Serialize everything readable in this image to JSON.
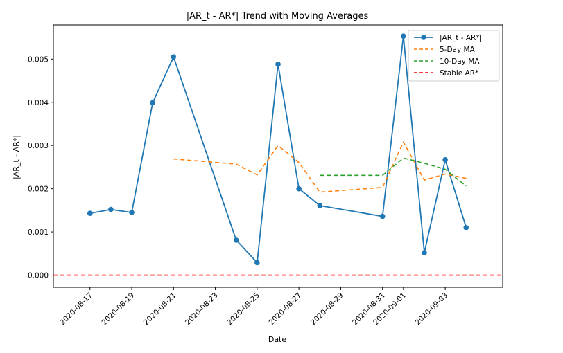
{
  "chart_data": {
    "type": "line",
    "title": "|AR_t - AR*| Trend with Moving Averages",
    "xlabel": "Date",
    "ylabel": "|AR_t - AR*|",
    "x_range": [
      "2020-08-15T06:00",
      "2020-09-05T18:00"
    ],
    "ylim": [
      -0.00028,
      0.00579
    ],
    "x_ticks": [
      "2020-08-17",
      "2020-08-19",
      "2020-08-21",
      "2020-08-23",
      "2020-08-25",
      "2020-08-27",
      "2020-08-29",
      "2020-08-31",
      "2020-09-01",
      "2020-09-03"
    ],
    "y_ticks": [
      "0.000",
      "0.001",
      "0.002",
      "0.003",
      "0.004",
      "0.005"
    ],
    "y_tick_values": [
      0,
      0.001,
      0.002,
      0.003,
      0.004,
      0.005
    ],
    "grid": false,
    "legend_position": "top-right",
    "series": [
      {
        "name": "|AR_t - AR*|",
        "color": "#1f77b4",
        "style": "solid-markers",
        "points": [
          [
            "2020-08-17",
            0.00143
          ],
          [
            "2020-08-18",
            0.00152
          ],
          [
            "2020-08-19",
            0.00145
          ],
          [
            "2020-08-20",
            0.00399
          ],
          [
            "2020-08-21",
            0.00505
          ],
          [
            "2020-08-24",
            0.00081
          ],
          [
            "2020-08-25",
            0.00029
          ],
          [
            "2020-08-26",
            0.00488
          ],
          [
            "2020-08-27",
            0.002
          ],
          [
            "2020-08-28",
            0.00161
          ],
          [
            "2020-08-31",
            0.00136
          ],
          [
            "2020-09-01",
            0.00553
          ],
          [
            "2020-09-02",
            0.00052
          ],
          [
            "2020-09-03",
            0.00267
          ],
          [
            "2020-09-04",
            0.0011
          ]
        ]
      },
      {
        "name": "5-Day MA",
        "color": "#ff7f0e",
        "style": "dashed",
        "points": [
          [
            "2020-08-21",
            0.00269
          ],
          [
            "2020-08-24",
            0.00257
          ],
          [
            "2020-08-25",
            0.00232
          ],
          [
            "2020-08-26",
            0.003
          ],
          [
            "2020-08-27",
            0.00261
          ],
          [
            "2020-08-28",
            0.00192
          ],
          [
            "2020-08-31",
            0.00203
          ],
          [
            "2020-09-01",
            0.00308
          ],
          [
            "2020-09-02",
            0.0022
          ],
          [
            "2020-09-03",
            0.00234
          ],
          [
            "2020-09-04",
            0.00224
          ]
        ]
      },
      {
        "name": "10-Day MA",
        "color": "#2ca02c",
        "style": "dashed",
        "points": [
          [
            "2020-08-28",
            0.00231
          ],
          [
            "2020-08-31",
            0.00231
          ],
          [
            "2020-09-01",
            0.00271
          ],
          [
            "2020-09-02",
            0.00259
          ],
          [
            "2020-09-03",
            0.00245
          ],
          [
            "2020-09-04",
            0.00206
          ]
        ]
      },
      {
        "name": "Stable AR*",
        "color": "#ff0000",
        "style": "dashed-horizontal",
        "value": 0.0
      }
    ]
  }
}
